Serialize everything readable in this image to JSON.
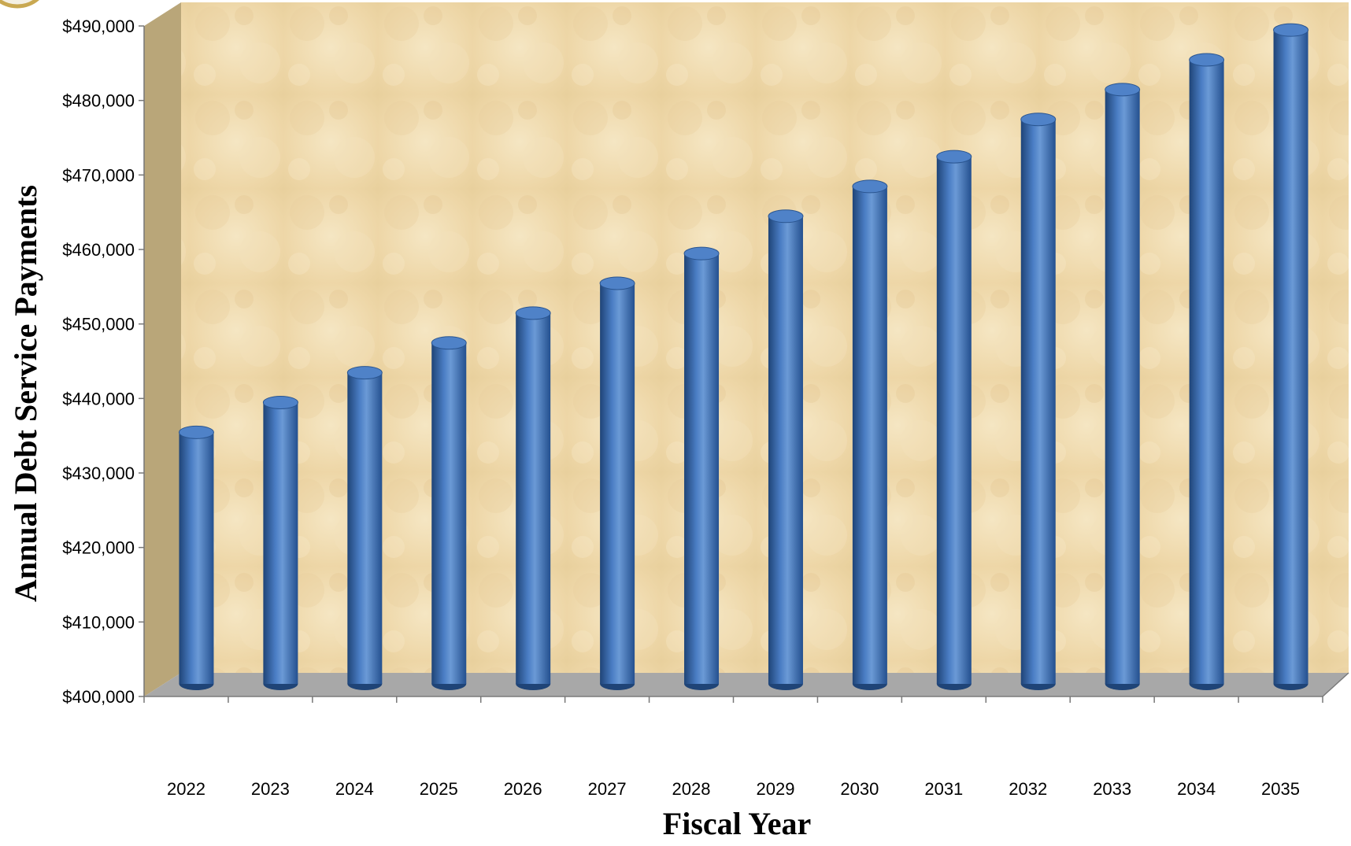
{
  "chart_data": {
    "type": "bar",
    "title": "",
    "xlabel": "Fiscal Year",
    "ylabel": "Annual Debt Service Payments",
    "categories": [
      "2022",
      "2023",
      "2024",
      "2025",
      "2026",
      "2027",
      "2028",
      "2029",
      "2030",
      "2031",
      "2032",
      "2033",
      "2034",
      "2035"
    ],
    "values": [
      432500,
      436500,
      440500,
      444500,
      448500,
      452500,
      456500,
      461500,
      465500,
      469500,
      474500,
      478500,
      482500,
      486500
    ],
    "ylim": [
      400000,
      490000
    ],
    "yticks": [
      400000,
      410000,
      420000,
      430000,
      440000,
      450000,
      460000,
      470000,
      480000,
      490000
    ],
    "ytick_labels": [
      "$400,000",
      "$410,000",
      "$420,000",
      "$430,000",
      "$440,000",
      "$450,000",
      "$460,000",
      "$470,000",
      "$480,000",
      "$490,000"
    ],
    "grid": false,
    "legend": "none",
    "colors": {
      "bar": "#3d6fb6",
      "bar_dark": "#1f4477",
      "bar_light": "#6b9ad6",
      "back_wall": "#efdcb0",
      "side_wall": "#b8a57a",
      "floor": "#a9a9a9"
    }
  }
}
